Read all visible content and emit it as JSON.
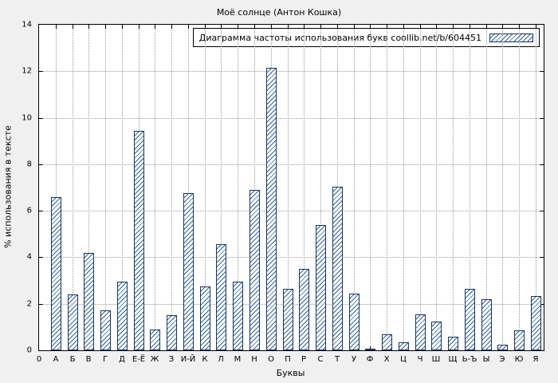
{
  "title": "Моё солнце (Антон Кошка)",
  "legend_label": "Диаграмма частоты использования букв coollib.net/b/604451",
  "chart_data": {
    "type": "bar",
    "title": "Моё солнце (Антон Кошка)",
    "xlabel": "Буквы",
    "ylabel": "% использования в тексте",
    "ylim": [
      0,
      14
    ],
    "yticks": [
      0,
      2,
      4,
      6,
      8,
      10,
      12,
      14
    ],
    "grid": true,
    "legend": [
      "Диаграмма частоты использования букв coollib.net/b/604451"
    ],
    "legend_position": "top-right",
    "categories": [
      "0",
      "А",
      "Б",
      "В",
      "Г",
      "Д",
      "Е-Ё",
      "Ж",
      "З",
      "И-Й",
      "К",
      "Л",
      "М",
      "Н",
      "О",
      "П",
      "Р",
      "С",
      "Т",
      "У",
      "Ф",
      "Х",
      "Ц",
      "Ч",
      "Ш",
      "Щ",
      "Ь-Ъ",
      "Ы",
      "Э",
      "Ю",
      "Я"
    ],
    "values": [
      null,
      6.6,
      2.4,
      4.2,
      1.7,
      2.95,
      9.45,
      0.9,
      1.5,
      6.75,
      2.75,
      4.55,
      2.95,
      6.9,
      12.15,
      2.65,
      3.5,
      5.4,
      7.05,
      2.45,
      0.05,
      0.7,
      0.35,
      1.55,
      1.25,
      0.6,
      2.65,
      2.2,
      0.25,
      0.85,
      2.35
    ],
    "hatch_color": "#31639c",
    "edge_color": "#16365c",
    "plot_background": "#ffffff",
    "figure_background": "#f0f0f0"
  }
}
